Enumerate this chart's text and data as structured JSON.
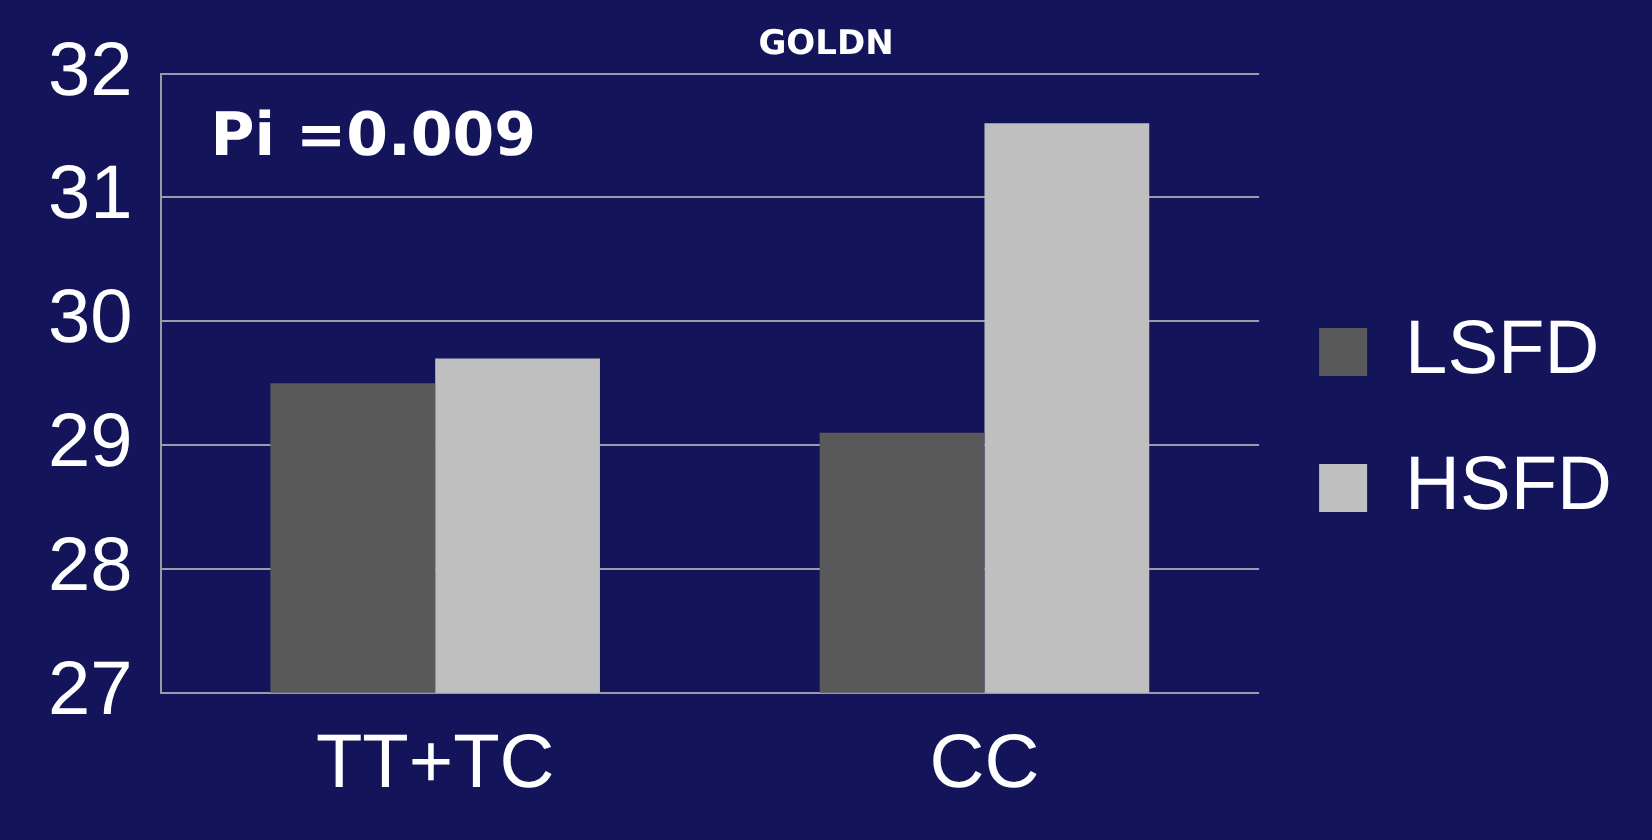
{
  "chart_data": {
    "type": "bar",
    "title": "GOLDN",
    "categories": [
      "TT+TC",
      "CC"
    ],
    "series": [
      {
        "name": "LSFD",
        "color": "#595959",
        "values": [
          29.5,
          29.1
        ]
      },
      {
        "name": "HSFD",
        "color": "#bfbfbf",
        "values": [
          29.7,
          31.6
        ]
      }
    ],
    "ylim": [
      27,
      32
    ],
    "yticks": [
      27,
      28,
      29,
      30,
      31,
      32
    ],
    "grid": "y",
    "legend": "right",
    "annotations": [
      "Pi =0.009"
    ]
  }
}
